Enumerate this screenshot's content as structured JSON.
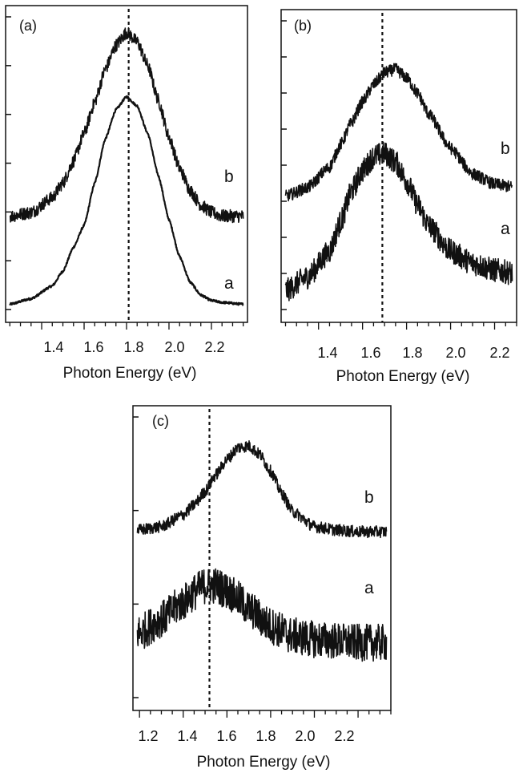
{
  "chart_data": [
    {
      "type": "line",
      "panel_label": "(a)",
      "xlabel": "Photon Energy (eV)",
      "ylabel": "",
      "xlim": [
        1.23,
        2.37
      ],
      "ylim": [
        0,
        1.55
      ],
      "x_ticks": [
        "1.4",
        "1.6",
        "1.8",
        "2.0",
        "2.2"
      ],
      "y_tick_count": 7,
      "reference_line_x": 1.81,
      "series": [
        {
          "name": "a",
          "noise": "low",
          "x": [
            1.25,
            1.35,
            1.45,
            1.5,
            1.55,
            1.6,
            1.65,
            1.7,
            1.75,
            1.8,
            1.85,
            1.9,
            1.95,
            2.0,
            2.05,
            2.1,
            2.15,
            2.2,
            2.25,
            2.35
          ],
          "y": [
            0.02,
            0.05,
            0.12,
            0.2,
            0.33,
            0.45,
            0.68,
            0.92,
            1.08,
            1.15,
            1.1,
            0.95,
            0.72,
            0.48,
            0.28,
            0.14,
            0.07,
            0.04,
            0.03,
            0.02
          ]
        },
        {
          "name": "b",
          "noise": "medium",
          "x": [
            1.25,
            1.35,
            1.45,
            1.5,
            1.55,
            1.6,
            1.65,
            1.7,
            1.75,
            1.8,
            1.85,
            1.9,
            1.95,
            2.0,
            2.05,
            2.1,
            2.15,
            2.2,
            2.25,
            2.35
          ],
          "y": [
            0.5,
            0.52,
            0.6,
            0.68,
            0.8,
            0.95,
            1.12,
            1.3,
            1.43,
            1.5,
            1.45,
            1.32,
            1.13,
            0.93,
            0.76,
            0.64,
            0.56,
            0.52,
            0.5,
            0.5
          ]
        }
      ]
    },
    {
      "type": "line",
      "panel_label": "(b)",
      "xlabel": "Photon Energy (eV)",
      "ylabel": "",
      "xlim": [
        1.23,
        2.3
      ],
      "ylim": [
        0,
        1.55
      ],
      "x_ticks": [
        "1.4",
        "1.6",
        "1.8",
        "2.0",
        "2.2"
      ],
      "y_tick_count": 9,
      "reference_line_x": 1.69,
      "series": [
        {
          "name": "a",
          "noise": "high",
          "x": [
            1.25,
            1.35,
            1.45,
            1.5,
            1.55,
            1.6,
            1.65,
            1.7,
            1.75,
            1.8,
            1.85,
            1.9,
            2.0,
            2.1,
            2.2,
            2.3
          ],
          "y": [
            0.1,
            0.18,
            0.33,
            0.5,
            0.68,
            0.8,
            0.88,
            0.9,
            0.85,
            0.74,
            0.6,
            0.48,
            0.33,
            0.26,
            0.22,
            0.2
          ]
        },
        {
          "name": "b",
          "noise": "medium",
          "x": [
            1.25,
            1.35,
            1.45,
            1.5,
            1.55,
            1.6,
            1.65,
            1.7,
            1.75,
            1.8,
            1.85,
            1.9,
            2.0,
            2.1,
            2.2,
            2.3
          ],
          "y": [
            0.65,
            0.7,
            0.82,
            0.95,
            1.08,
            1.2,
            1.3,
            1.37,
            1.39,
            1.34,
            1.25,
            1.13,
            0.93,
            0.78,
            0.72,
            0.7
          ]
        }
      ]
    },
    {
      "type": "line",
      "panel_label": "(c)",
      "xlabel": "Photon Energy (eV)",
      "ylabel": "",
      "xlim": [
        1.17,
        2.35
      ],
      "ylim": [
        0,
        1.55
      ],
      "x_ticks": [
        "1.2",
        "1.4",
        "1.6",
        "1.8",
        "2.0",
        "2.2"
      ],
      "y_tick_count": 4,
      "reference_line_x": 1.52,
      "series": [
        {
          "name": "a",
          "noise": "very-high",
          "x": [
            1.2,
            1.3,
            1.4,
            1.45,
            1.5,
            1.55,
            1.6,
            1.65,
            1.7,
            1.8,
            1.9,
            2.0,
            2.1,
            2.2,
            2.3,
            2.35
          ],
          "y": [
            0.32,
            0.4,
            0.5,
            0.56,
            0.6,
            0.6,
            0.57,
            0.52,
            0.46,
            0.36,
            0.3,
            0.28,
            0.27,
            0.26,
            0.26,
            0.26
          ]
        },
        {
          "name": "b",
          "noise": "medium",
          "x": [
            1.2,
            1.3,
            1.4,
            1.45,
            1.5,
            1.55,
            1.6,
            1.65,
            1.7,
            1.75,
            1.8,
            1.85,
            1.9,
            2.0,
            2.1,
            2.2,
            2.3,
            2.35
          ],
          "y": [
            0.93,
            0.95,
            1.02,
            1.08,
            1.16,
            1.26,
            1.35,
            1.42,
            1.43,
            1.38,
            1.28,
            1.15,
            1.04,
            0.95,
            0.93,
            0.92,
            0.92,
            0.92
          ]
        }
      ]
    }
  ]
}
